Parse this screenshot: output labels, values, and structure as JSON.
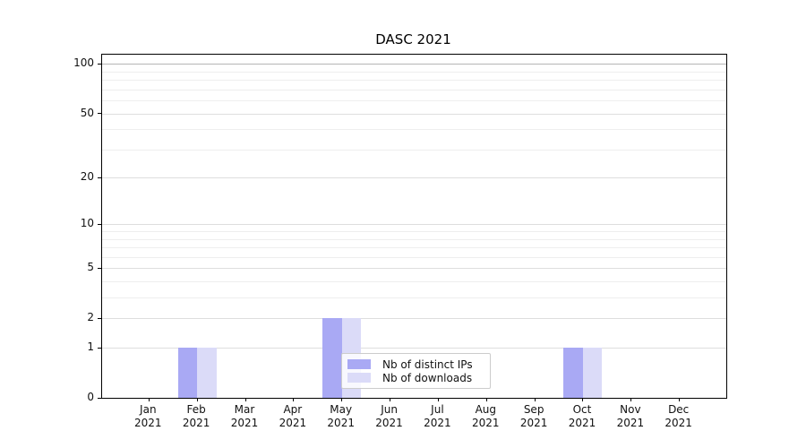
{
  "chart_data": {
    "type": "bar",
    "title": "DASC 2021",
    "categories": [
      "Jan 2021",
      "Feb 2021",
      "Mar 2021",
      "Apr 2021",
      "May 2021",
      "Jun 2021",
      "Jul 2021",
      "Aug 2021",
      "Sep 2021",
      "Oct 2021",
      "Nov 2021",
      "Dec 2021"
    ],
    "months": [
      "Jan",
      "Feb",
      "Mar",
      "Apr",
      "May",
      "Jun",
      "Jul",
      "Aug",
      "Sep",
      "Oct",
      "Nov",
      "Dec"
    ],
    "year": "2021",
    "series": [
      {
        "name": "Nb of distinct IPs",
        "color": "#a9a9f4",
        "values": [
          0,
          1,
          0,
          0,
          2,
          0,
          0,
          0,
          0,
          1,
          0,
          0
        ]
      },
      {
        "name": "Nb of downloads",
        "color": "#dbdbf8",
        "values": [
          0,
          1,
          0,
          0,
          2,
          0,
          0,
          0,
          0,
          1,
          0,
          0
        ]
      }
    ],
    "xlabel": "",
    "ylabel": "",
    "yscale": "symlog-log1p",
    "ylim": [
      0,
      114
    ],
    "yticks": [
      0,
      1,
      2,
      5,
      10,
      20,
      50,
      100
    ],
    "minor_gridlines": [
      3,
      4,
      6,
      7,
      8,
      9,
      30,
      40,
      60,
      70,
      80,
      90
    ],
    "grid": "horizontal",
    "legend_position": "inside-bottom-center",
    "colors": {
      "axis": "#000000",
      "tick_text": "#111111",
      "grid_major": "#dedede",
      "grid_minor": "#eeeeee",
      "grid_top": "#b5b5b5",
      "legend_border": "#cccccc"
    }
  }
}
